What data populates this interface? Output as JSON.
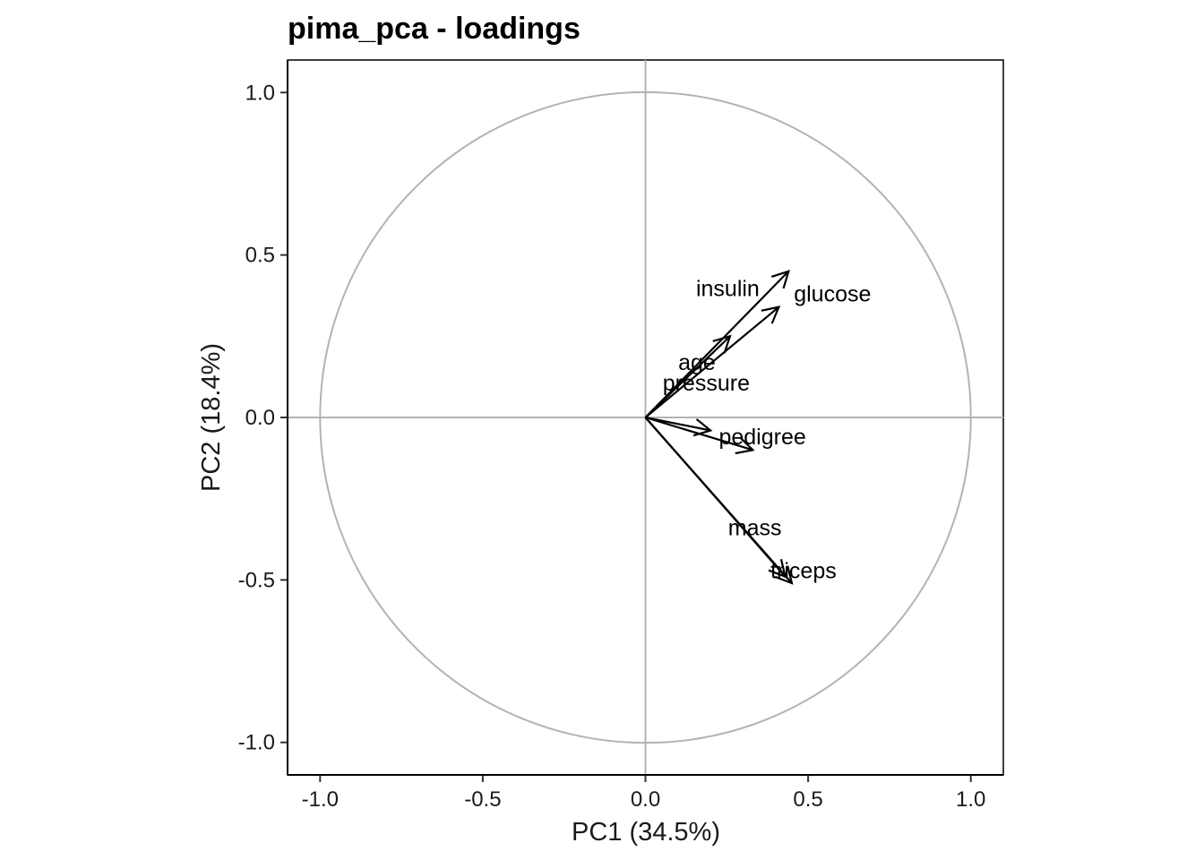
{
  "chart_data": {
    "type": "scatter",
    "title": "pima_pca - loadings",
    "xlabel": "PC1 (34.5%)",
    "ylabel": "PC2 (18.4%)",
    "xlim": [
      -1.1,
      1.1
    ],
    "ylim": [
      -1.1,
      1.1
    ],
    "x_ticks": [
      -1.0,
      -0.5,
      0.0,
      0.5,
      1.0
    ],
    "y_ticks": [
      -1.0,
      -0.5,
      0.0,
      0.5,
      1.0
    ],
    "x_tick_labels": [
      "-1.0",
      "-0.5",
      "0.0",
      "0.5",
      "1.0"
    ],
    "y_tick_labels": [
      "-1.0",
      "-0.5",
      "0.0",
      "0.5",
      "1.0"
    ],
    "unit_circle": true,
    "reference_lines": {
      "x": 0,
      "y": 0
    },
    "guide_color": "#b3b3b3",
    "arrow_color": "#000000",
    "points": [
      {
        "label": "glucose",
        "x": 0.44,
        "y": 0.45
      },
      {
        "label": "insulin",
        "x": 0.41,
        "y": 0.34
      },
      {
        "label": "age",
        "x": 0.26,
        "y": 0.25
      },
      {
        "label": "pressure",
        "x": 0.33,
        "y": -0.1
      },
      {
        "label": "pedigree",
        "x": 0.2,
        "y": -0.04
      },
      {
        "label": "mass",
        "x": 0.43,
        "y": -0.49
      },
      {
        "label": "triceps",
        "x": 0.45,
        "y": -0.51
      }
    ]
  }
}
